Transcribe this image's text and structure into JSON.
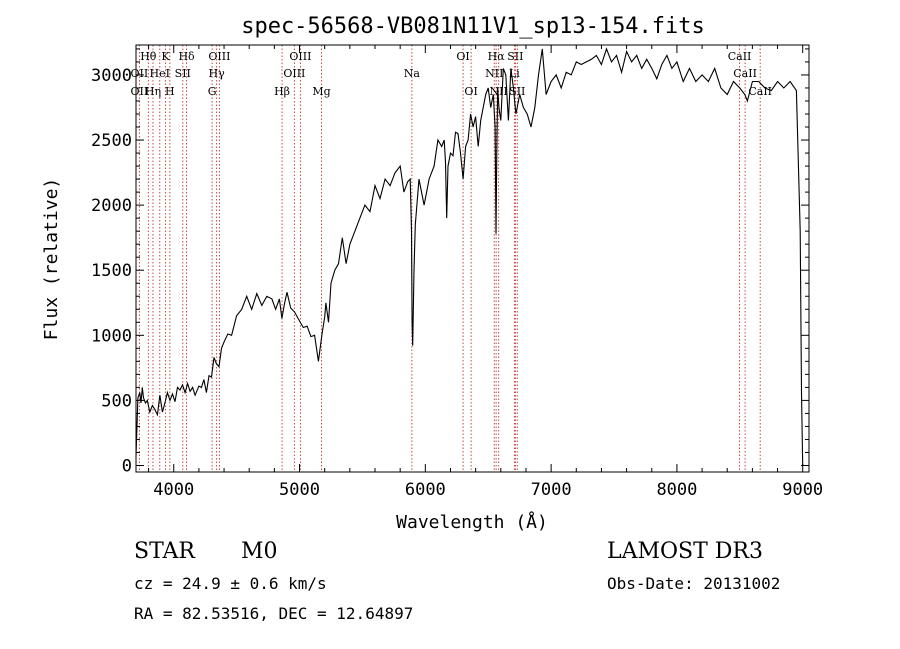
{
  "chart_data": {
    "type": "line",
    "title": "spec-56568-VB081N11V1_sp13-154.fits",
    "xlabel": "Wavelength (Å)",
    "ylabel": "Flux (relative)",
    "xlim": [
      3700,
      9050
    ],
    "ylim": [
      -50,
      3230
    ],
    "x_ticks": [
      4000,
      5000,
      6000,
      7000,
      8000,
      9000
    ],
    "y_ticks": [
      0,
      500,
      1000,
      1500,
      2000,
      2500,
      3000
    ],
    "x_tick_labels": [
      "4000",
      "5000",
      "6000",
      "7000",
      "8000",
      "9000"
    ],
    "y_tick_labels": [
      "0",
      "500",
      "1000",
      "1500",
      "2000",
      "2500",
      "3000"
    ],
    "series": [
      {
        "name": "flux",
        "x": [
          3700,
          3715,
          3730,
          3740,
          3750,
          3760,
          3775,
          3790,
          3810,
          3830,
          3850,
          3870,
          3890,
          3910,
          3930,
          3950,
          3970,
          3990,
          4010,
          4030,
          4050,
          4070,
          4090,
          4110,
          4130,
          4150,
          4170,
          4200,
          4220,
          4240,
          4260,
          4280,
          4300,
          4320,
          4340,
          4360,
          4380,
          4400,
          4430,
          4460,
          4500,
          4540,
          4580,
          4620,
          4660,
          4700,
          4740,
          4780,
          4810,
          4840,
          4860,
          4880,
          4900,
          4930,
          4960,
          5000,
          5030,
          5060,
          5090,
          5120,
          5150,
          5180,
          5200,
          5210,
          5230,
          5250,
          5280,
          5310,
          5340,
          5370,
          5400,
          5440,
          5480,
          5520,
          5560,
          5600,
          5640,
          5680,
          5720,
          5760,
          5800,
          5830,
          5860,
          5880,
          5890,
          5895,
          5900,
          5910,
          5920,
          5950,
          5990,
          6030,
          6070,
          6100,
          6130,
          6150,
          6160,
          6170,
          6180,
          6200,
          6220,
          6240,
          6260,
          6280,
          6300,
          6320,
          6340,
          6360,
          6380,
          6400,
          6420,
          6440,
          6460,
          6480,
          6500,
          6520,
          6540,
          6555,
          6562,
          6568,
          6575,
          6585,
          6600,
          6620,
          6640,
          6660,
          6680,
          6700,
          6720,
          6750,
          6780,
          6810,
          6840,
          6870,
          6900,
          6930,
          6960,
          7000,
          7040,
          7080,
          7120,
          7160,
          7200,
          7240,
          7280,
          7320,
          7360,
          7400,
          7440,
          7480,
          7520,
          7560,
          7600,
          7640,
          7680,
          7720,
          7760,
          7800,
          7840,
          7880,
          7920,
          7960,
          8000,
          8050,
          8100,
          8150,
          8200,
          8250,
          8300,
          8350,
          8400,
          8450,
          8500,
          8540,
          8560,
          8600,
          8650,
          8700,
          8750,
          8800,
          8850,
          8900,
          8950,
          8980,
          8990,
          9000
        ],
        "values": [
          70,
          520,
          560,
          480,
          600,
          520,
          480,
          500,
          410,
          460,
          430,
          390,
          540,
          410,
          480,
          560,
          500,
          550,
          490,
          600,
          580,
          620,
          560,
          630,
          570,
          600,
          540,
          610,
          600,
          660,
          560,
          690,
          680,
          830,
          780,
          760,
          900,
          950,
          1010,
          1000,
          1150,
          1200,
          1300,
          1200,
          1320,
          1230,
          1300,
          1280,
          1200,
          1280,
          1130,
          1240,
          1330,
          1210,
          1180,
          1110,
          1060,
          1070,
          990,
          1000,
          800,
          1020,
          1140,
          1250,
          1100,
          1400,
          1500,
          1550,
          1750,
          1550,
          1700,
          1800,
          1900,
          2000,
          1950,
          2150,
          2050,
          2200,
          2150,
          2250,
          2300,
          2100,
          2180,
          2200,
          1800,
          1100,
          920,
          1500,
          1850,
          2200,
          2000,
          2200,
          2300,
          2500,
          2450,
          2500,
          2330,
          1900,
          2300,
          2400,
          2380,
          2560,
          2550,
          2400,
          2200,
          2450,
          2500,
          2700,
          2600,
          2680,
          2450,
          2650,
          2750,
          2850,
          2900,
          2750,
          2850,
          2600,
          1780,
          2400,
          2900,
          2750,
          2650,
          3050,
          3000,
          2650,
          3050,
          2900,
          2700,
          2850,
          2750,
          2700,
          2600,
          2750,
          3000,
          3200,
          2850,
          2950,
          3000,
          2900,
          3020,
          3000,
          3100,
          3080,
          3100,
          3120,
          3150,
          3080,
          3200,
          3100,
          3150,
          3020,
          3180,
          3100,
          3150,
          3050,
          3120,
          3050,
          2970,
          3080,
          3150,
          3050,
          3100,
          2950,
          3050,
          2950,
          3000,
          2950,
          3050,
          2900,
          2850,
          2950,
          2900,
          2850,
          2800,
          2950,
          2950,
          2900,
          2880,
          2950,
          2900,
          2950,
          2880,
          1800,
          560,
          0
        ]
      }
    ],
    "emission_lines": [
      {
        "label": "Hθ",
        "x": 3798,
        "row": 1
      },
      {
        "label": "OII",
        "x": 3727,
        "row": 2
      },
      {
        "label": "OII",
        "x": 3727,
        "row": 3
      },
      {
        "label": "Hη",
        "x": 3835,
        "row": 3
      },
      {
        "label": "HeI",
        "x": 3889,
        "row": 2
      },
      {
        "label": "K",
        "x": 3934,
        "row": 1
      },
      {
        "label": "H",
        "x": 3969,
        "row": 3
      },
      {
        "label": "SII",
        "x": 4072,
        "row": 2
      },
      {
        "label": "Hδ",
        "x": 4102,
        "row": 1
      },
      {
        "label": "OIII",
        "x": 4363,
        "row": 1
      },
      {
        "label": "Hγ",
        "x": 4341,
        "row": 2
      },
      {
        "label": "G",
        "x": 4305,
        "row": 3
      },
      {
        "label": "Hβ",
        "x": 4861,
        "row": 3
      },
      {
        "label": "OIII",
        "x": 4959,
        "row": 2
      },
      {
        "label": "OIII",
        "x": 5007,
        "row": 1
      },
      {
        "label": "Mg",
        "x": 5175,
        "row": 3
      },
      {
        "label": "Na",
        "x": 5893,
        "row": 2
      },
      {
        "label": "OI",
        "x": 6300,
        "row": 1
      },
      {
        "label": "OI",
        "x": 6364,
        "row": 3
      },
      {
        "label": "Hα",
        "x": 6563,
        "row": 1
      },
      {
        "label": "NII",
        "x": 6548,
        "row": 2
      },
      {
        "label": "NII",
        "x": 6583,
        "row": 3
      },
      {
        "label": "Li",
        "x": 6708,
        "row": 2
      },
      {
        "label": "SII",
        "x": 6716,
        "row": 1
      },
      {
        "label": "SII",
        "x": 6731,
        "row": 3
      },
      {
        "label": "CaII",
        "x": 8498,
        "row": 1
      },
      {
        "label": "CaII",
        "x": 8542,
        "row": 2
      },
      {
        "label": "CaII",
        "x": 8662,
        "row": 3
      }
    ]
  },
  "info": {
    "object_type": "STAR",
    "subclass": "M0",
    "survey": "LAMOST DR3",
    "redshift": "cz = 24.9 ± 0.6 km/s",
    "obs_date": "Obs-Date: 20131002",
    "coords": "RA =  82.53516, DEC =  12.64897"
  }
}
